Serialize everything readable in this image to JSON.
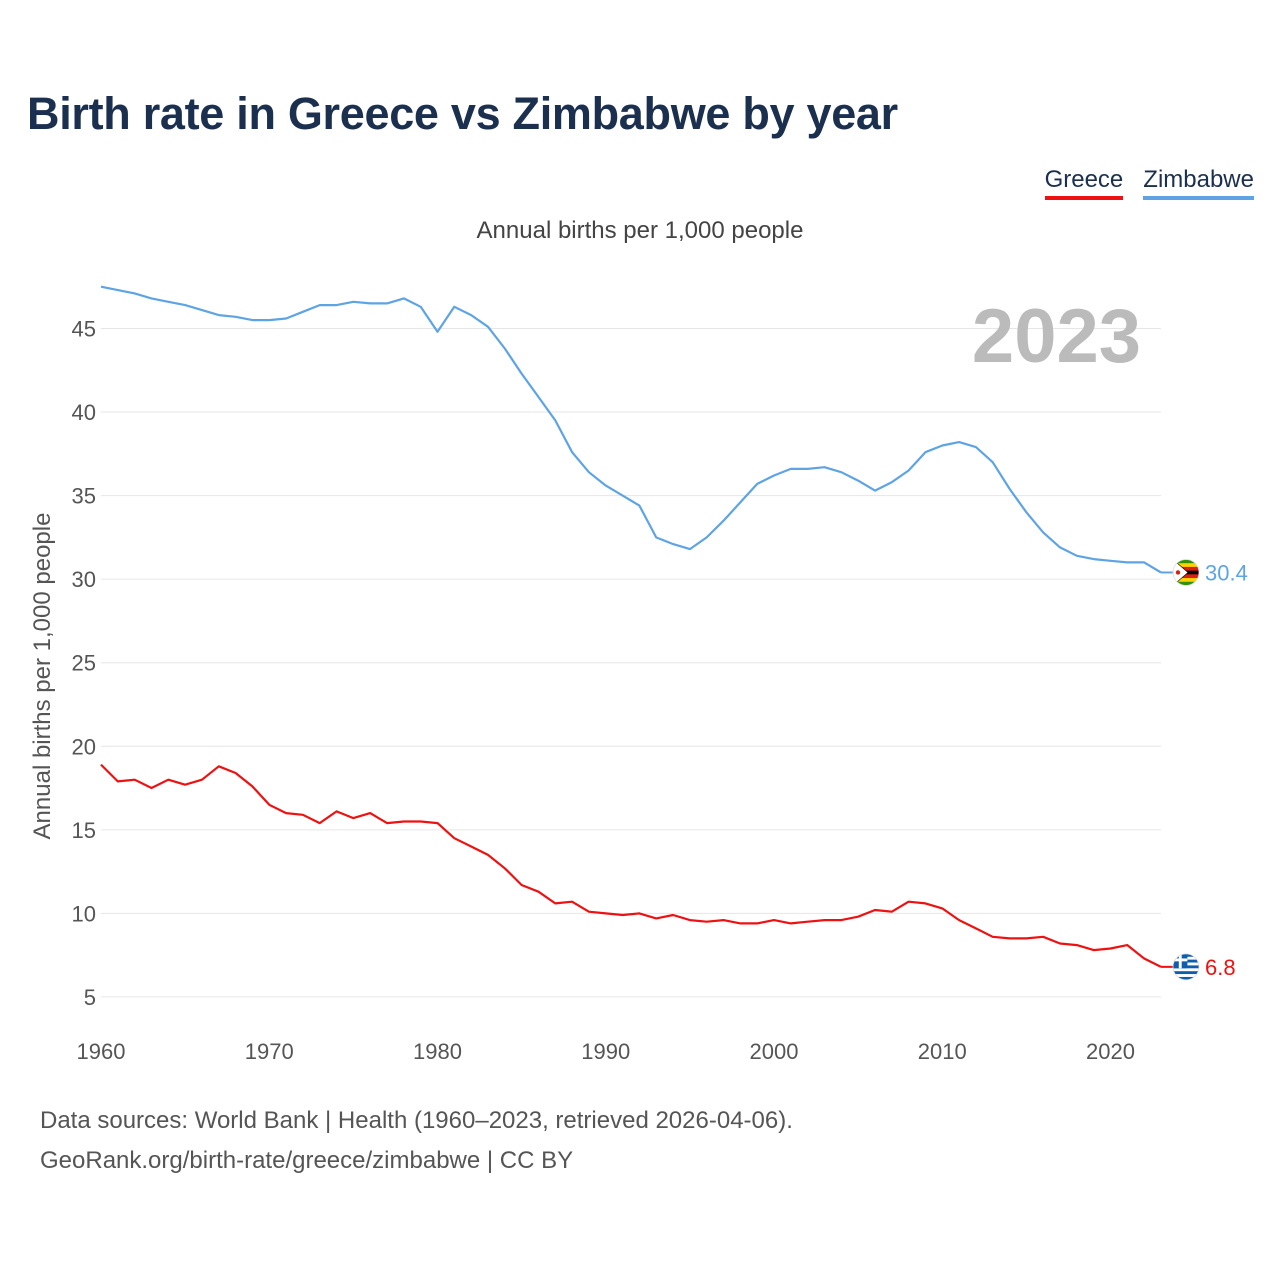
{
  "title": "Birth rate in Greece vs Zimbabwe by year",
  "legend": [
    {
      "name": "Greece",
      "color": "#ee1111"
    },
    {
      "name": "Zimbabwe",
      "color": "#5ea4e4"
    }
  ],
  "subtitle": "Annual births per 1,000 people",
  "year_label": "2023",
  "sources": {
    "line1": "Data sources: World Bank | Health (1960–2023, retrieved 2026-04-06).",
    "line2": "GeoRank.org/birth-rate/greece/zimbabwe | CC BY"
  },
  "chart_data": {
    "type": "line",
    "ylabel": "Annual births per 1,000 people",
    "xlabel": "",
    "xlim": [
      1960,
      2023
    ],
    "ylim": [
      3.5,
      48.5
    ],
    "x_ticks": [
      1960,
      1970,
      1980,
      1990,
      2000,
      2010,
      2020
    ],
    "y_ticks": [
      5,
      10,
      15,
      20,
      25,
      30,
      35,
      40,
      45
    ],
    "series": [
      {
        "name": "Zimbabwe",
        "color": "#5ea4e4",
        "end_label": "30.4",
        "flag_icon": "zimbabwe-flag-icon",
        "x": [
          1960,
          1961,
          1962,
          1963,
          1964,
          1965,
          1966,
          1967,
          1968,
          1969,
          1970,
          1971,
          1972,
          1973,
          1974,
          1975,
          1976,
          1977,
          1978,
          1979,
          1980,
          1981,
          1982,
          1983,
          1984,
          1985,
          1986,
          1987,
          1988,
          1989,
          1990,
          1991,
          1992,
          1993,
          1994,
          1995,
          1996,
          1997,
          1998,
          1999,
          2000,
          2001,
          2002,
          2003,
          2004,
          2005,
          2006,
          2007,
          2008,
          2009,
          2010,
          2011,
          2012,
          2013,
          2014,
          2015,
          2016,
          2017,
          2018,
          2019,
          2020,
          2021,
          2022,
          2023
        ],
        "values": [
          47.5,
          47.3,
          47.1,
          46.8,
          46.6,
          46.4,
          46.1,
          45.8,
          45.7,
          45.5,
          45.5,
          45.6,
          46.0,
          46.4,
          46.4,
          46.6,
          46.5,
          46.5,
          46.8,
          46.3,
          44.8,
          46.3,
          45.8,
          45.1,
          43.8,
          42.3,
          40.9,
          39.5,
          37.6,
          36.4,
          35.6,
          35.0,
          34.4,
          32.5,
          32.1,
          31.8,
          32.5,
          33.5,
          34.6,
          35.7,
          36.2,
          36.6,
          36.6,
          36.7,
          36.4,
          35.9,
          35.3,
          35.8,
          36.5,
          37.6,
          38.0,
          38.2,
          37.9,
          37.0,
          35.4,
          34.0,
          32.8,
          31.9,
          31.4,
          31.2,
          31.1,
          31.0,
          31.0,
          30.4
        ]
      },
      {
        "name": "Greece",
        "color": "#ee1111",
        "end_label": "6.8",
        "flag_icon": "greece-flag-icon",
        "x": [
          1960,
          1961,
          1962,
          1963,
          1964,
          1965,
          1966,
          1967,
          1968,
          1969,
          1970,
          1971,
          1972,
          1973,
          1974,
          1975,
          1976,
          1977,
          1978,
          1979,
          1980,
          1981,
          1982,
          1983,
          1984,
          1985,
          1986,
          1987,
          1988,
          1989,
          1990,
          1991,
          1992,
          1993,
          1994,
          1995,
          1996,
          1997,
          1998,
          1999,
          2000,
          2001,
          2002,
          2003,
          2004,
          2005,
          2006,
          2007,
          2008,
          2009,
          2010,
          2011,
          2012,
          2013,
          2014,
          2015,
          2016,
          2017,
          2018,
          2019,
          2020,
          2021,
          2022,
          2023
        ],
        "values": [
          18.9,
          17.9,
          18.0,
          17.5,
          18.0,
          17.7,
          18.0,
          18.8,
          18.4,
          17.6,
          16.5,
          16.0,
          15.9,
          15.4,
          16.1,
          15.7,
          16.0,
          15.4,
          15.5,
          15.5,
          15.4,
          14.5,
          14.0,
          13.5,
          12.7,
          11.7,
          11.3,
          10.6,
          10.7,
          10.1,
          10.0,
          9.9,
          10.0,
          9.7,
          9.9,
          9.6,
          9.5,
          9.6,
          9.4,
          9.4,
          9.6,
          9.4,
          9.5,
          9.6,
          9.6,
          9.8,
          10.2,
          10.1,
          10.7,
          10.6,
          10.3,
          9.6,
          9.1,
          8.6,
          8.5,
          8.5,
          8.6,
          8.2,
          8.1,
          7.8,
          7.9,
          8.1,
          7.3,
          6.8
        ]
      }
    ]
  }
}
